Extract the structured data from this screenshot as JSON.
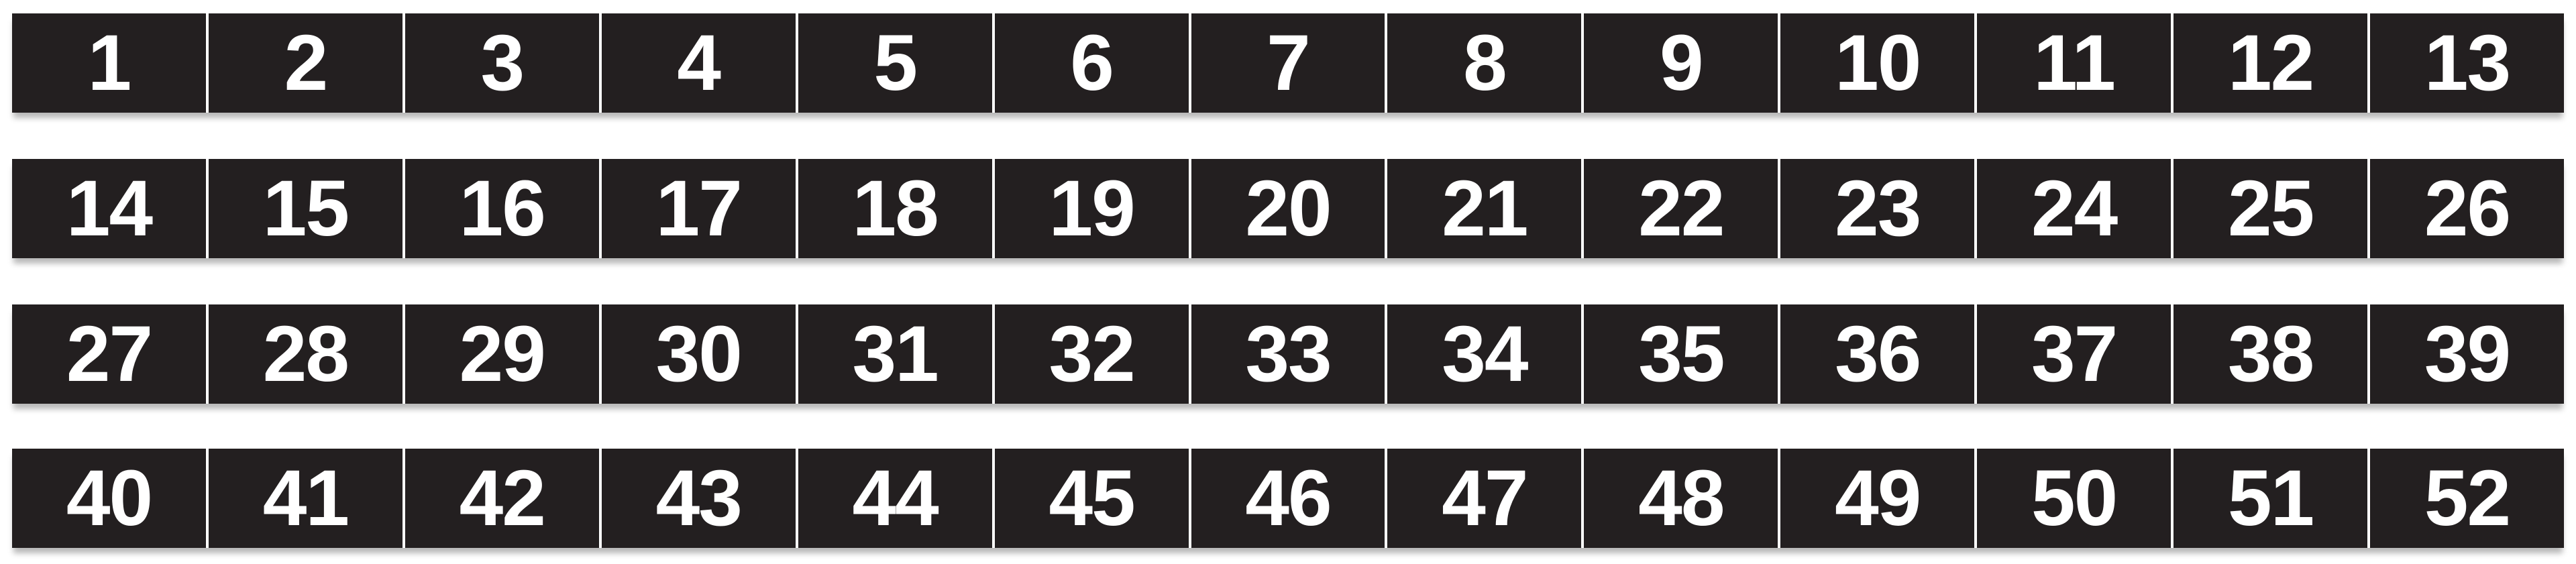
{
  "colors": {
    "cell_background": "#231f20",
    "text": "#ffffff",
    "page_background": "#ffffff"
  },
  "rows": [
    [
      "1",
      "2",
      "3",
      "4",
      "5",
      "6",
      "7",
      "8",
      "9",
      "10",
      "11",
      "12",
      "13"
    ],
    [
      "14",
      "15",
      "16",
      "17",
      "18",
      "19",
      "20",
      "21",
      "22",
      "23",
      "24",
      "25",
      "26"
    ],
    [
      "27",
      "28",
      "29",
      "30",
      "31",
      "32",
      "33",
      "34",
      "35",
      "36",
      "37",
      "38",
      "39"
    ],
    [
      "40",
      "41",
      "42",
      "43",
      "44",
      "45",
      "46",
      "47",
      "48",
      "49",
      "50",
      "51",
      "52"
    ]
  ]
}
